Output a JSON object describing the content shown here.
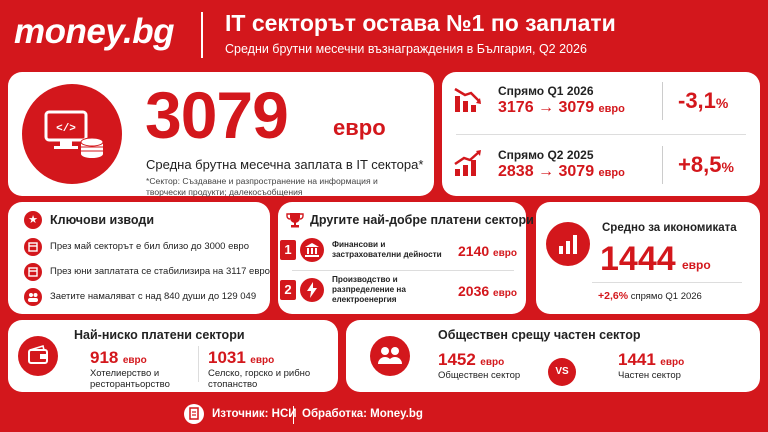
{
  "header": {
    "logo": "money.bg",
    "title": "IT секторът остава №1 по заплати",
    "subtitle": "Средни брутни месечни възнаграждения в България, Q2 2026"
  },
  "hero": {
    "value": "3079",
    "unit": "евро",
    "label": "Средна брутна месечна заплата в IT сектора*",
    "note": "*Сектор: Създаване и разпространение на информация и творчески продукти; далекосъобщения",
    "icon": "computer-coins-icon"
  },
  "comparisons": [
    {
      "label": "Спрямо Q1 2026",
      "from": "3176",
      "arrow": "→",
      "to": "3079",
      "unit": "евро",
      "change": "-3,1",
      "pct": "%",
      "icon": "chart-down-icon"
    },
    {
      "label": "Спрямо Q2 2025",
      "from": "2838",
      "arrow": "→",
      "to": "3079",
      "unit": "евро",
      "change": "+8,5",
      "pct": "%",
      "icon": "chart-up-icon"
    }
  ],
  "key_findings": {
    "title": "Ключови изводи",
    "items": [
      "През май секторът е бил близо до 3000 евро",
      "През юни заплатата се стабилизира на 3117 евро",
      "Заетите намаляват с над 840 души до 129 049"
    ]
  },
  "top_sectors": {
    "title": "Другите най-добре платени сектори",
    "items": [
      {
        "rank": "1",
        "label": "Финансови и застрахователни дейности",
        "value": "2140",
        "unit": "евро",
        "icon": "bank-icon"
      },
      {
        "rank": "2",
        "label": "Производство и разпределение на електроенергия",
        "value": "2036",
        "unit": "евро",
        "icon": "lightning-icon"
      }
    ]
  },
  "economy": {
    "title": "Средно за икономиката",
    "value": "1444",
    "unit": "евро",
    "change": "+2,6%",
    "change_label": "спрямо Q1 2026"
  },
  "lowest": {
    "title": "Най-ниско платени сектори",
    "items": [
      {
        "value": "918",
        "unit": "евро",
        "label": "Хотелиерство и ресторантьорство"
      },
      {
        "value": "1031",
        "unit": "евро",
        "label": "Селско, горско и рибно стопанство"
      }
    ]
  },
  "public_private": {
    "title": "Обществен срещу частен сектор",
    "public": {
      "value": "1452",
      "unit": "евро",
      "label": "Обществен сектор"
    },
    "vs": "VS",
    "private": {
      "value": "1441",
      "unit": "евро",
      "label": "Частен сектор"
    }
  },
  "footer": {
    "source": "Източник: НСИ",
    "processing": "Обработка: Money.bg"
  },
  "colors": {
    "accent": "#d3171c",
    "card": "#ffffff"
  }
}
